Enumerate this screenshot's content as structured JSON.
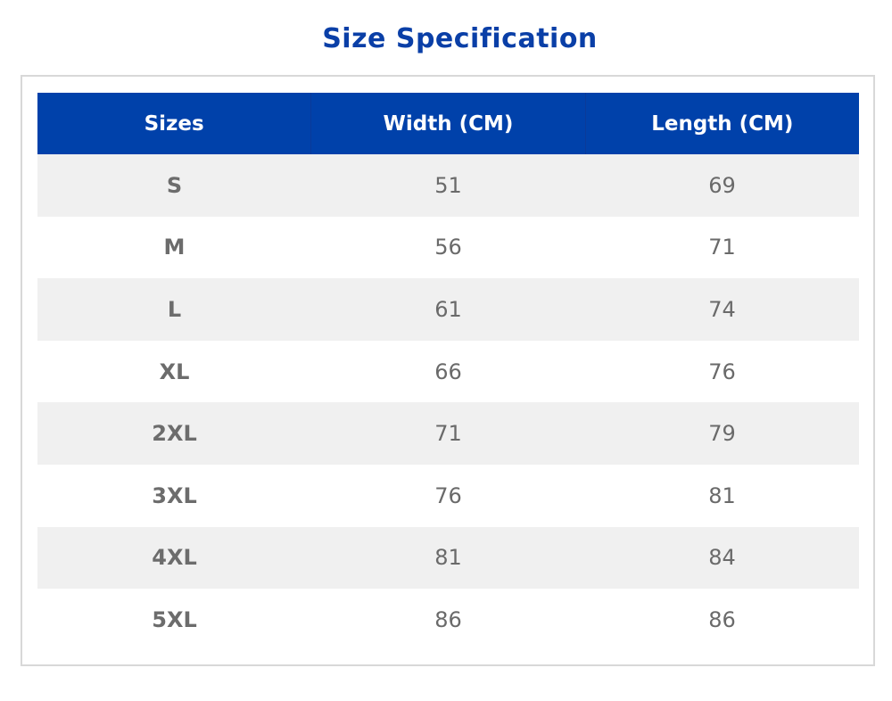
{
  "title": "Size Specification",
  "table": {
    "headers": [
      "Sizes",
      "Width (CM)",
      "Length (CM)"
    ],
    "rows": [
      {
        "size": "S",
        "width": "51",
        "length": "69"
      },
      {
        "size": "M",
        "width": "56",
        "length": "71"
      },
      {
        "size": "L",
        "width": "61",
        "length": "74"
      },
      {
        "size": "XL",
        "width": "66",
        "length": "76"
      },
      {
        "size": "2XL",
        "width": "71",
        "length": "79"
      },
      {
        "size": "3XL",
        "width": "76",
        "length": "81"
      },
      {
        "size": "4XL",
        "width": "81",
        "length": "84"
      },
      {
        "size": "5XL",
        "width": "86",
        "length": "86"
      }
    ]
  },
  "colors": {
    "title": "#0a3fa7",
    "header_bg": "#0041aa",
    "row_shaded": "#f0f0f0",
    "text": "#6a6a6a",
    "border": "#d8d8d8"
  }
}
